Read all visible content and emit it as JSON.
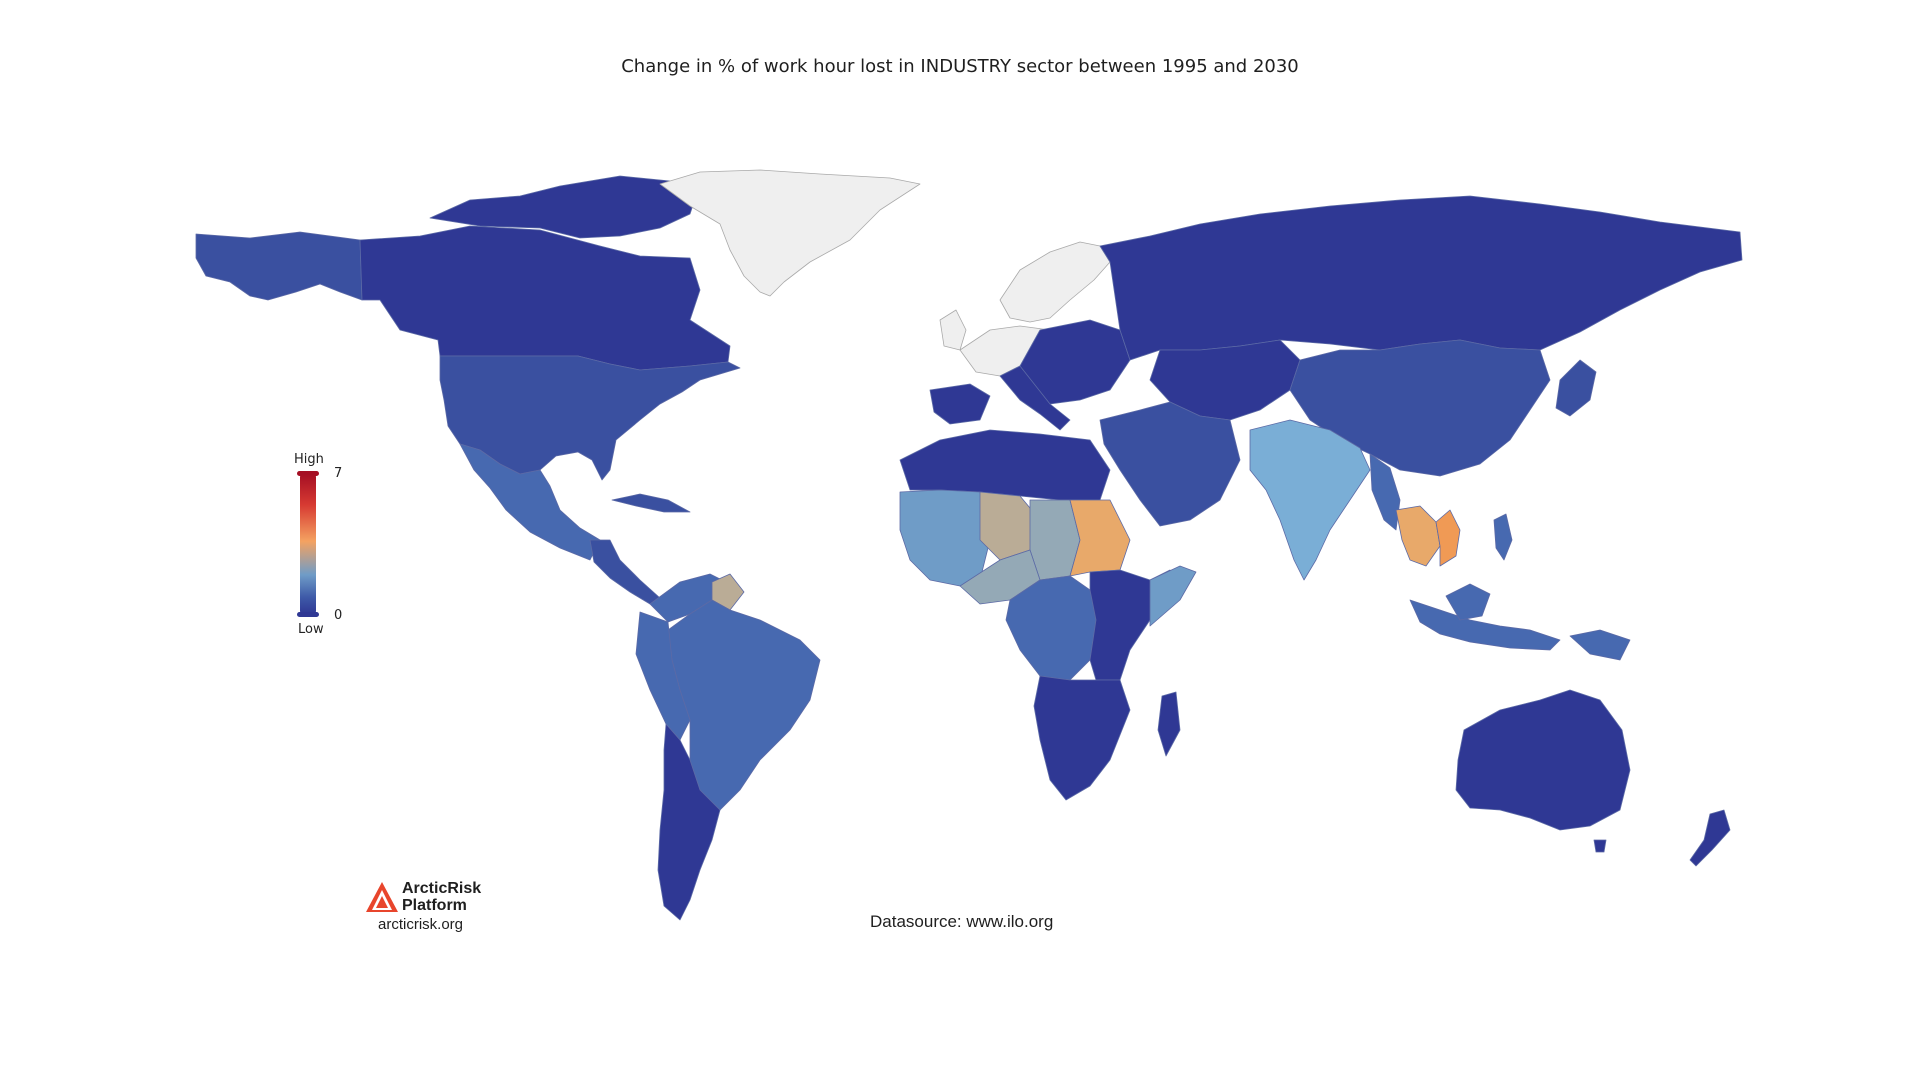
{
  "title": "Change in % of work hour lost in INDUSTRY sector between 1995 and 2030",
  "legend": {
    "label_high": "High",
    "label_low": "Low",
    "max_value": "7",
    "min_value": "0",
    "color_high": "#a50f24",
    "color_low": "#2f3894"
  },
  "branding": {
    "name_line1": "ArcticRisk",
    "name_line2": "Platform",
    "url": "arcticrisk.org",
    "accent": "#e8452c"
  },
  "datasource": "Datasource: www.ilo.org",
  "colors": {
    "very_low": "#2f3894",
    "low": "#3a50a0",
    "low_mid": "#4769b0",
    "mid": "#6f9cc7",
    "mid_light": "#7aaed6",
    "grayish": "#94a9b6",
    "tan": "#baac96",
    "orange": "#e8a96a",
    "orange_strong": "#f09a55",
    "no_data": "#efefef"
  }
}
